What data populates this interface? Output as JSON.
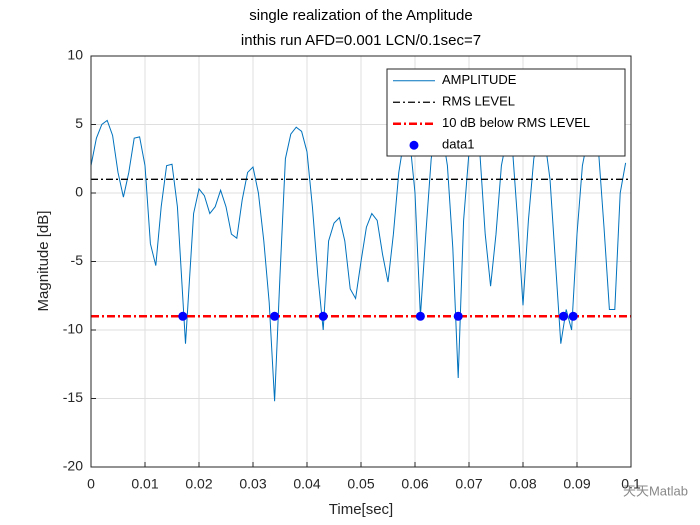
{
  "chart_data": {
    "type": "line",
    "title": "single realization of the Amplitude",
    "subtitle": "inthis run AFD=0.001    LCN/0.1sec=7",
    "x_label": "Time[sec]",
    "y_label": "Magnitude [dB]",
    "xlim": [
      0,
      0.1
    ],
    "ylim": [
      -20,
      10
    ],
    "xticks": [
      0,
      0.01,
      0.02,
      0.03,
      0.04,
      0.05,
      0.06,
      0.07,
      0.08,
      0.09,
      0.1
    ],
    "yticks": [
      -20,
      -15,
      -10,
      -5,
      0,
      5,
      10
    ],
    "grid": true,
    "legend": "northeast",
    "watermark": "天天Matlab",
    "series": [
      {
        "name": "AMPLITUDE",
        "color": "#0072bd",
        "style": "solid",
        "x": [
          0,
          0.001,
          0.002,
          0.003,
          0.004,
          0.005,
          0.006,
          0.007,
          0.008,
          0.009,
          0.01,
          0.011,
          0.012,
          0.013,
          0.014,
          0.015,
          0.016,
          0.0175,
          0.019,
          0.02,
          0.021,
          0.022,
          0.023,
          0.024,
          0.025,
          0.026,
          0.027,
          0.028,
          0.029,
          0.03,
          0.031,
          0.032,
          0.033,
          0.034,
          0.035,
          0.036,
          0.037,
          0.038,
          0.039,
          0.04,
          0.041,
          0.042,
          0.043,
          0.044,
          0.045,
          0.046,
          0.047,
          0.048,
          0.049,
          0.05,
          0.051,
          0.052,
          0.053,
          0.054,
          0.055,
          0.056,
          0.057,
          0.058,
          0.059,
          0.06,
          0.061,
          0.062,
          0.063,
          0.064,
          0.065,
          0.066,
          0.067,
          0.068,
          0.069,
          0.07,
          0.071,
          0.072,
          0.073,
          0.074,
          0.075,
          0.076,
          0.077,
          0.078,
          0.079,
          0.08,
          0.081,
          0.082,
          0.083,
          0.084,
          0.085,
          0.086,
          0.087,
          0.088,
          0.089,
          0.09,
          0.091,
          0.092,
          0.093,
          0.094,
          0.095,
          0.096,
          0.097,
          0.098,
          0.099
        ],
        "values": [
          2,
          4,
          5,
          5.3,
          4.2,
          1.5,
          -0.3,
          1.5,
          4,
          4.1,
          2,
          -3.7,
          -5.3,
          -1,
          2,
          2.1,
          -1,
          -11,
          -1.5,
          0.3,
          -0.2,
          -1.5,
          -1,
          0.2,
          -1,
          -3,
          -3.3,
          -0.5,
          1.5,
          1.9,
          0,
          -3.5,
          -8,
          -15.2,
          -6,
          2.5,
          4.3,
          4.8,
          4.5,
          3,
          -1,
          -6,
          -10,
          -3.5,
          -2.2,
          -1.8,
          -3.5,
          -7,
          -7.7,
          -5,
          -2.5,
          -1.5,
          -2,
          -4.5,
          -6.5,
          -3,
          1.5,
          4,
          4,
          0,
          -9,
          -3,
          2.5,
          5,
          4.5,
          2,
          -4,
          -13.5,
          -2,
          3,
          4.5,
          3,
          -3,
          -6.8,
          -3,
          2,
          4,
          3.5,
          -2,
          -8.2,
          -2,
          2.5,
          4.5,
          4,
          1,
          -5,
          -11,
          -8.5,
          -10,
          -3,
          2,
          4,
          4.5,
          3,
          -2.5,
          -8.5,
          -8.5,
          0,
          2.2
        ]
      },
      {
        "name": "RMS LEVEL",
        "color": "#000000",
        "style": "dashdot",
        "x": [
          0,
          0.1
        ],
        "values": [
          1,
          1
        ]
      },
      {
        "name": "10 dB below RMS LEVEL",
        "color": "#ff0000",
        "style": "dashdot-thick",
        "x": [
          0,
          0.1
        ],
        "values": [
          -9,
          -9
        ]
      },
      {
        "name": "data1",
        "color": "#0000ff",
        "style": "marker",
        "x": [
          0.017,
          0.034,
          0.043,
          0.061,
          0.068,
          0.0875,
          0.0893
        ],
        "values": [
          -9,
          -9,
          -9,
          -9,
          -9,
          -9,
          -9
        ]
      }
    ]
  }
}
